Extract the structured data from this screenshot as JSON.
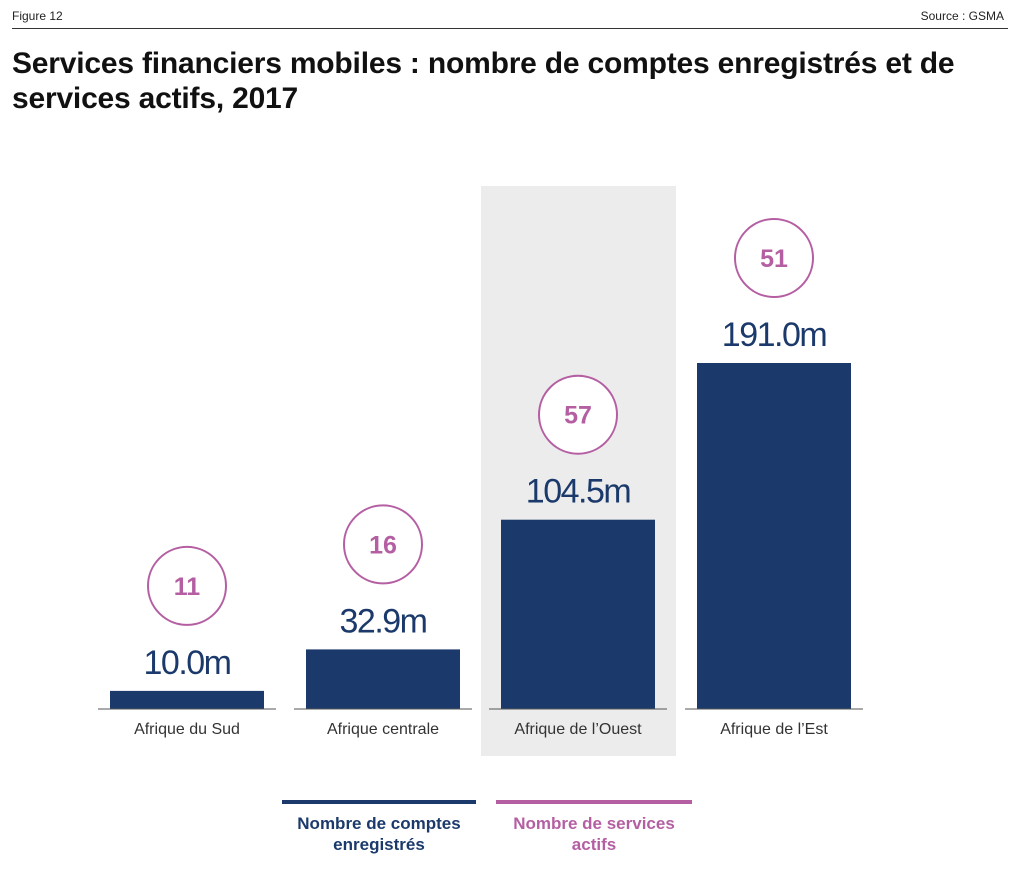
{
  "header": {
    "figure_label": "Figure 12",
    "source": "Source : GSMA"
  },
  "title": "Services financiers mobiles : nombre de comptes enregistrés et de services actifs, 2017",
  "colors": {
    "bar": "#1b3a6b",
    "circle": "#b55fa3",
    "highlight_bg": "#ececec",
    "baseline": "#555555",
    "category_text": "#333333"
  },
  "legend": [
    {
      "label": "Nombre de comptes enregistrés",
      "color": "#1b3a6b"
    },
    {
      "label": "Nombre de services actifs",
      "color": "#b55fa3"
    }
  ],
  "chart_data": {
    "type": "bar",
    "categories": [
      "Afrique du Sud",
      "Afrique centrale",
      "Afrique de l’Ouest",
      "Afrique de l’Est"
    ],
    "series": [
      {
        "name": "Nombre de comptes enregistrés",
        "values": [
          10.0,
          32.9,
          104.5,
          191.0
        ],
        "labels": [
          "10.0m",
          "32.9m",
          "104.5m",
          "191.0m"
        ]
      },
      {
        "name": "Nombre de services actifs",
        "values": [
          11,
          16,
          57,
          51
        ],
        "labels": [
          "11",
          "16",
          "57",
          "51"
        ]
      }
    ],
    "highlighted_category": "Afrique de l’Ouest",
    "ylim": [
      0,
      191.0
    ],
    "grid": false
  }
}
